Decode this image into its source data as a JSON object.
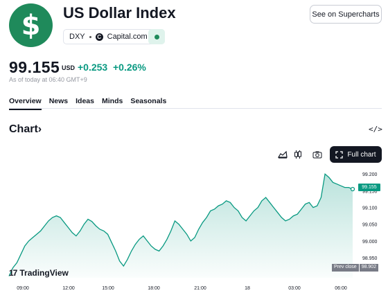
{
  "header": {
    "logo_symbol": "$",
    "title": "US Dollar Index",
    "ticker": "DXY",
    "exchange_icon": "C",
    "exchange": "Capital.com",
    "supercharts_label": "See on Supercharts"
  },
  "quote": {
    "price": "99.155",
    "unit": "USD",
    "change": "+0.253",
    "change_pct": "+0.26%",
    "as_of": "As of today at 06:40 GMT+9"
  },
  "tabs": [
    "Overview",
    "News",
    "Ideas",
    "Minds",
    "Seasonals"
  ],
  "chart_section": {
    "heading": "Chart",
    "heading_arrow": "›",
    "embed_icon": "</>",
    "full_chart_label": "Full chart",
    "last_price_tag": "99.155",
    "prev_close_label": "Prev close",
    "prev_close_value": "98.902",
    "brand": "TradingView",
    "brand_mark": "17"
  },
  "colors": {
    "accent": "#089981",
    "logo_bg": "#1f8a5b",
    "dark": "#131722"
  },
  "chart_data": {
    "type": "area",
    "x_ticks": [
      "09:00",
      "12:00",
      "15:00",
      "18:00",
      "21:00",
      "18",
      "03:00",
      "06:00"
    ],
    "y_ticks": [
      "99.200",
      "99.150",
      "99.100",
      "99.050",
      "99.000",
      "98.950"
    ],
    "ylim": [
      98.89,
      99.215
    ],
    "series": [
      {
        "values": [
          98.895,
          98.92,
          98.935,
          98.96,
          98.985,
          99.0,
          99.01,
          99.02,
          99.03,
          99.045,
          99.06,
          99.07,
          99.075,
          99.07,
          99.055,
          99.04,
          99.025,
          99.015,
          99.03,
          99.05,
          99.065,
          99.058,
          99.045,
          99.035,
          99.03,
          99.02,
          98.995,
          98.97,
          98.94,
          98.925,
          98.945,
          98.97,
          98.99,
          99.005,
          99.015,
          99.0,
          98.985,
          98.975,
          98.97,
          98.985,
          99.005,
          99.03,
          99.06,
          99.05,
          99.035,
          99.02,
          99.0,
          99.01,
          99.035,
          99.055,
          99.07,
          99.09,
          99.095,
          99.105,
          99.11,
          99.12,
          99.115,
          99.1,
          99.09,
          99.07,
          99.06,
          99.075,
          99.09,
          99.1,
          99.12,
          99.13,
          99.115,
          99.1,
          99.085,
          99.07,
          99.06,
          99.065,
          99.075,
          99.08,
          99.095,
          99.11,
          99.115,
          99.1,
          99.105,
          99.13,
          99.2,
          99.19,
          99.175,
          99.17,
          99.165,
          99.16,
          99.16,
          99.155
        ]
      }
    ]
  }
}
